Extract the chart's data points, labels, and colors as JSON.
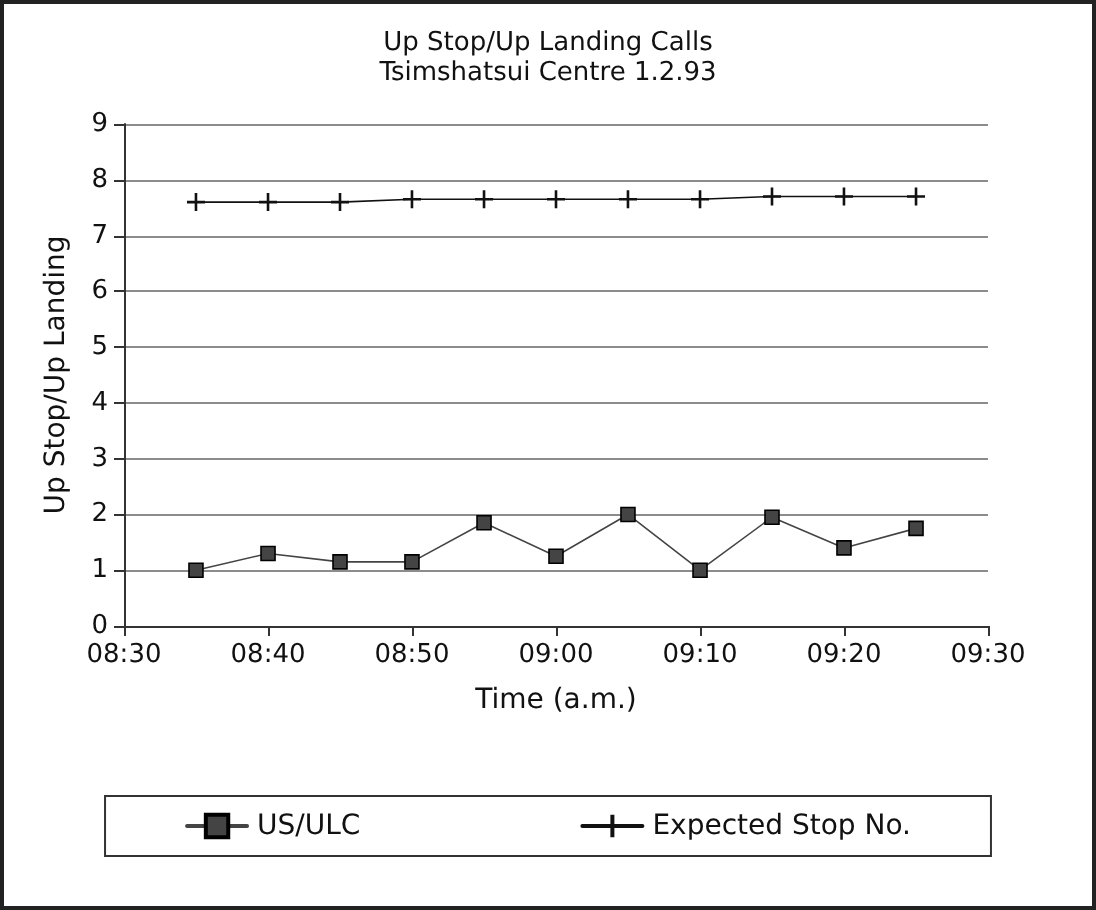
{
  "chart_data": {
    "type": "line",
    "title": "Up Stop/Up Landing Calls",
    "subtitle": "Tsimshatsui Centre 1.2.93",
    "xlabel": "Time (a.m.)",
    "ylabel": "Up Stop/Up Landing",
    "x": [
      8.5833,
      8.6667,
      8.75,
      8.8333,
      8.9167,
      9.0,
      9.0833,
      9.1667,
      9.25,
      9.3333,
      9.4167
    ],
    "series": [
      {
        "name": "US/ULC",
        "color": "#444444",
        "marker": "square",
        "values": [
          1.0,
          1.3,
          1.15,
          1.15,
          1.85,
          1.25,
          2.0,
          1.0,
          1.95,
          1.4,
          1.75
        ]
      },
      {
        "name": "Expected Stop No.",
        "color": "#111111",
        "marker": "cross",
        "values": [
          7.6,
          7.6,
          7.6,
          7.65,
          7.65,
          7.65,
          7.65,
          7.65,
          7.7,
          7.7,
          7.7
        ]
      }
    ],
    "xlim": [
      8.5,
      9.5
    ],
    "xticks": [
      {
        "value": 8.5,
        "label": "08:30"
      },
      {
        "value": 8.6667,
        "label": "08:40"
      },
      {
        "value": 8.8333,
        "label": "08:50"
      },
      {
        "value": 9.0,
        "label": "09:00"
      },
      {
        "value": 9.1667,
        "label": "09:10"
      },
      {
        "value": 9.3333,
        "label": "09:20"
      },
      {
        "value": 9.5,
        "label": "09:30"
      }
    ],
    "ylim": [
      0,
      9
    ],
    "yticks": [
      0,
      1,
      2,
      3,
      4,
      5,
      6,
      7,
      8,
      9
    ],
    "grid": "y",
    "legend": "bottom",
    "line_style": "solid"
  }
}
